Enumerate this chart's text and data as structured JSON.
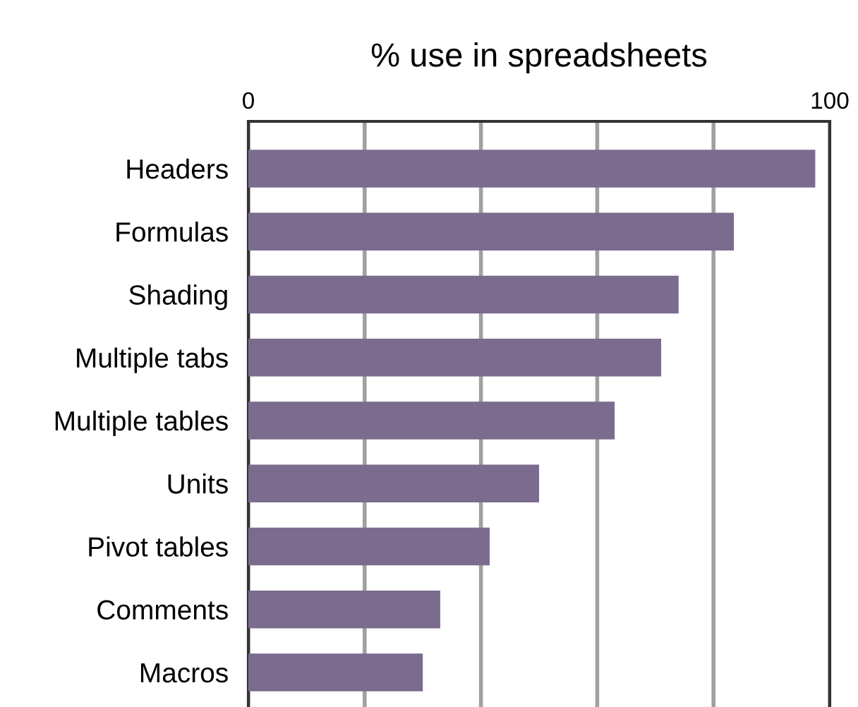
{
  "chart_data": {
    "type": "bar",
    "orientation": "horizontal",
    "title": "% use in spreadsheets",
    "categories": [
      "Headers",
      "Formulas",
      "Shading",
      "Multiple tabs",
      "Multiple tables",
      "Units",
      "Pivot tables",
      "Comments",
      "Macros"
    ],
    "values": [
      97.5,
      83.5,
      74,
      71,
      63,
      50,
      41.5,
      33,
      30
    ],
    "color": "#7b6b8f",
    "xlim": [
      0,
      100
    ],
    "xticks": [
      0,
      {
        "value": 20,
        "label": null
      },
      {
        "value": 40,
        "label": null
      },
      {
        "value": 60,
        "label": null
      },
      {
        "value": 80,
        "label": null
      },
      100
    ],
    "grid": "x"
  }
}
